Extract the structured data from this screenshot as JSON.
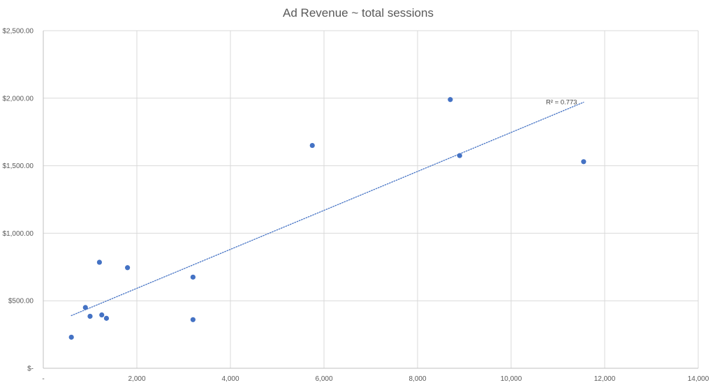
{
  "chart_data": {
    "type": "scatter",
    "title": "Ad Revenue ~ total sessions",
    "xlabel": "",
    "ylabel": "",
    "xlim": [
      0,
      14000
    ],
    "ylim": [
      0,
      2500
    ],
    "x_ticks": [
      {
        "value": 0,
        "label": "-"
      },
      {
        "value": 2000,
        "label": "2,000"
      },
      {
        "value": 4000,
        "label": "4,000"
      },
      {
        "value": 6000,
        "label": "6,000"
      },
      {
        "value": 8000,
        "label": "8,000"
      },
      {
        "value": 10000,
        "label": "10,000"
      },
      {
        "value": 12000,
        "label": "12,000"
      },
      {
        "value": 14000,
        "label": "14,000"
      }
    ],
    "y_ticks": [
      {
        "value": 0,
        "label": "$-"
      },
      {
        "value": 500,
        "label": "$500.00"
      },
      {
        "value": 1000,
        "label": "$1,000.00"
      },
      {
        "value": 1500,
        "label": "$1,500.00"
      },
      {
        "value": 2000,
        "label": "$2,000.00"
      },
      {
        "value": 2500,
        "label": "$2,500.00"
      }
    ],
    "grid": true,
    "legend": "none",
    "series": [
      {
        "color": "#4472c4",
        "points": [
          {
            "x": 600,
            "y": 230
          },
          {
            "x": 900,
            "y": 450
          },
          {
            "x": 1000,
            "y": 385
          },
          {
            "x": 1200,
            "y": 785
          },
          {
            "x": 1250,
            "y": 395
          },
          {
            "x": 1350,
            "y": 370
          },
          {
            "x": 1800,
            "y": 745
          },
          {
            "x": 3200,
            "y": 675
          },
          {
            "x": 3200,
            "y": 360
          },
          {
            "x": 5750,
            "y": 1650
          },
          {
            "x": 8700,
            "y": 1990
          },
          {
            "x": 8900,
            "y": 1575
          },
          {
            "x": 11550,
            "y": 1530
          }
        ]
      }
    ],
    "trendline": {
      "type": "linear",
      "color": "#4472c4",
      "style": "dotted",
      "x_start": 600,
      "y_start": 390,
      "x_end": 11550,
      "y_end": 1970,
      "label": "R² = 0.773"
    }
  }
}
